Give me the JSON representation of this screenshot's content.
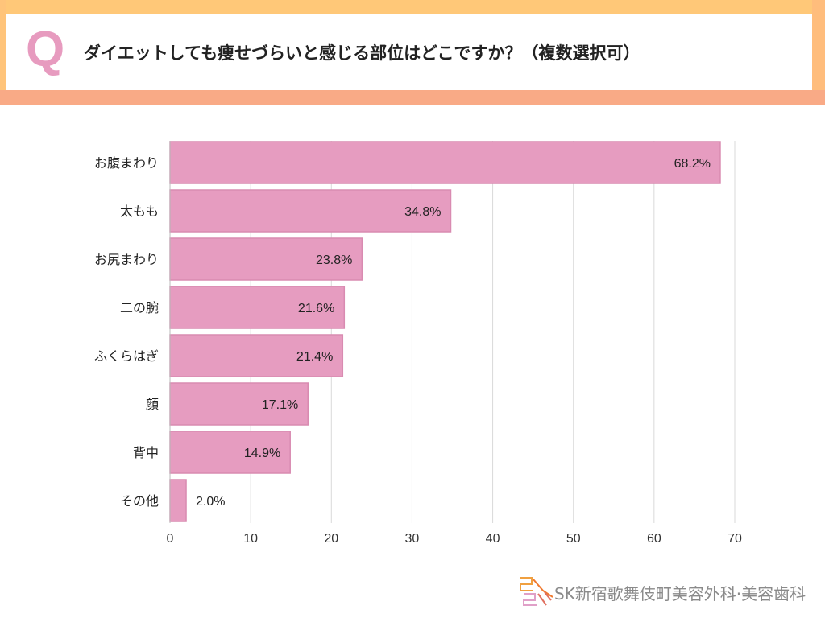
{
  "header": {
    "q_mark": "Q",
    "title": "ダイエットしても痩せづらいと感じる部位はどこですか？（複数選択可）"
  },
  "chart_data": {
    "type": "bar",
    "orientation": "horizontal",
    "categories": [
      "お腹まわり",
      "太もも",
      "お尻まわり",
      "二の腕",
      "ふくらはぎ",
      "顔",
      "背中",
      "その他"
    ],
    "values": [
      68.2,
      34.8,
      23.8,
      21.6,
      21.4,
      17.1,
      14.9,
      2.0
    ],
    "value_labels": [
      "68.2%",
      "34.8%",
      "23.8%",
      "21.6%",
      "21.4%",
      "17.1%",
      "14.9%",
      "2.0%"
    ],
    "xlim": [
      0,
      70
    ],
    "xticks": [
      0,
      10,
      20,
      30,
      40,
      50,
      60,
      70
    ],
    "grid": true,
    "bar_color": "#e69cc0",
    "bar_border": "#d98bb1"
  },
  "footer": {
    "logo_text": "SK新宿歌舞伎町美容外科·美容歯科",
    "logo_mark": "SK SK"
  }
}
